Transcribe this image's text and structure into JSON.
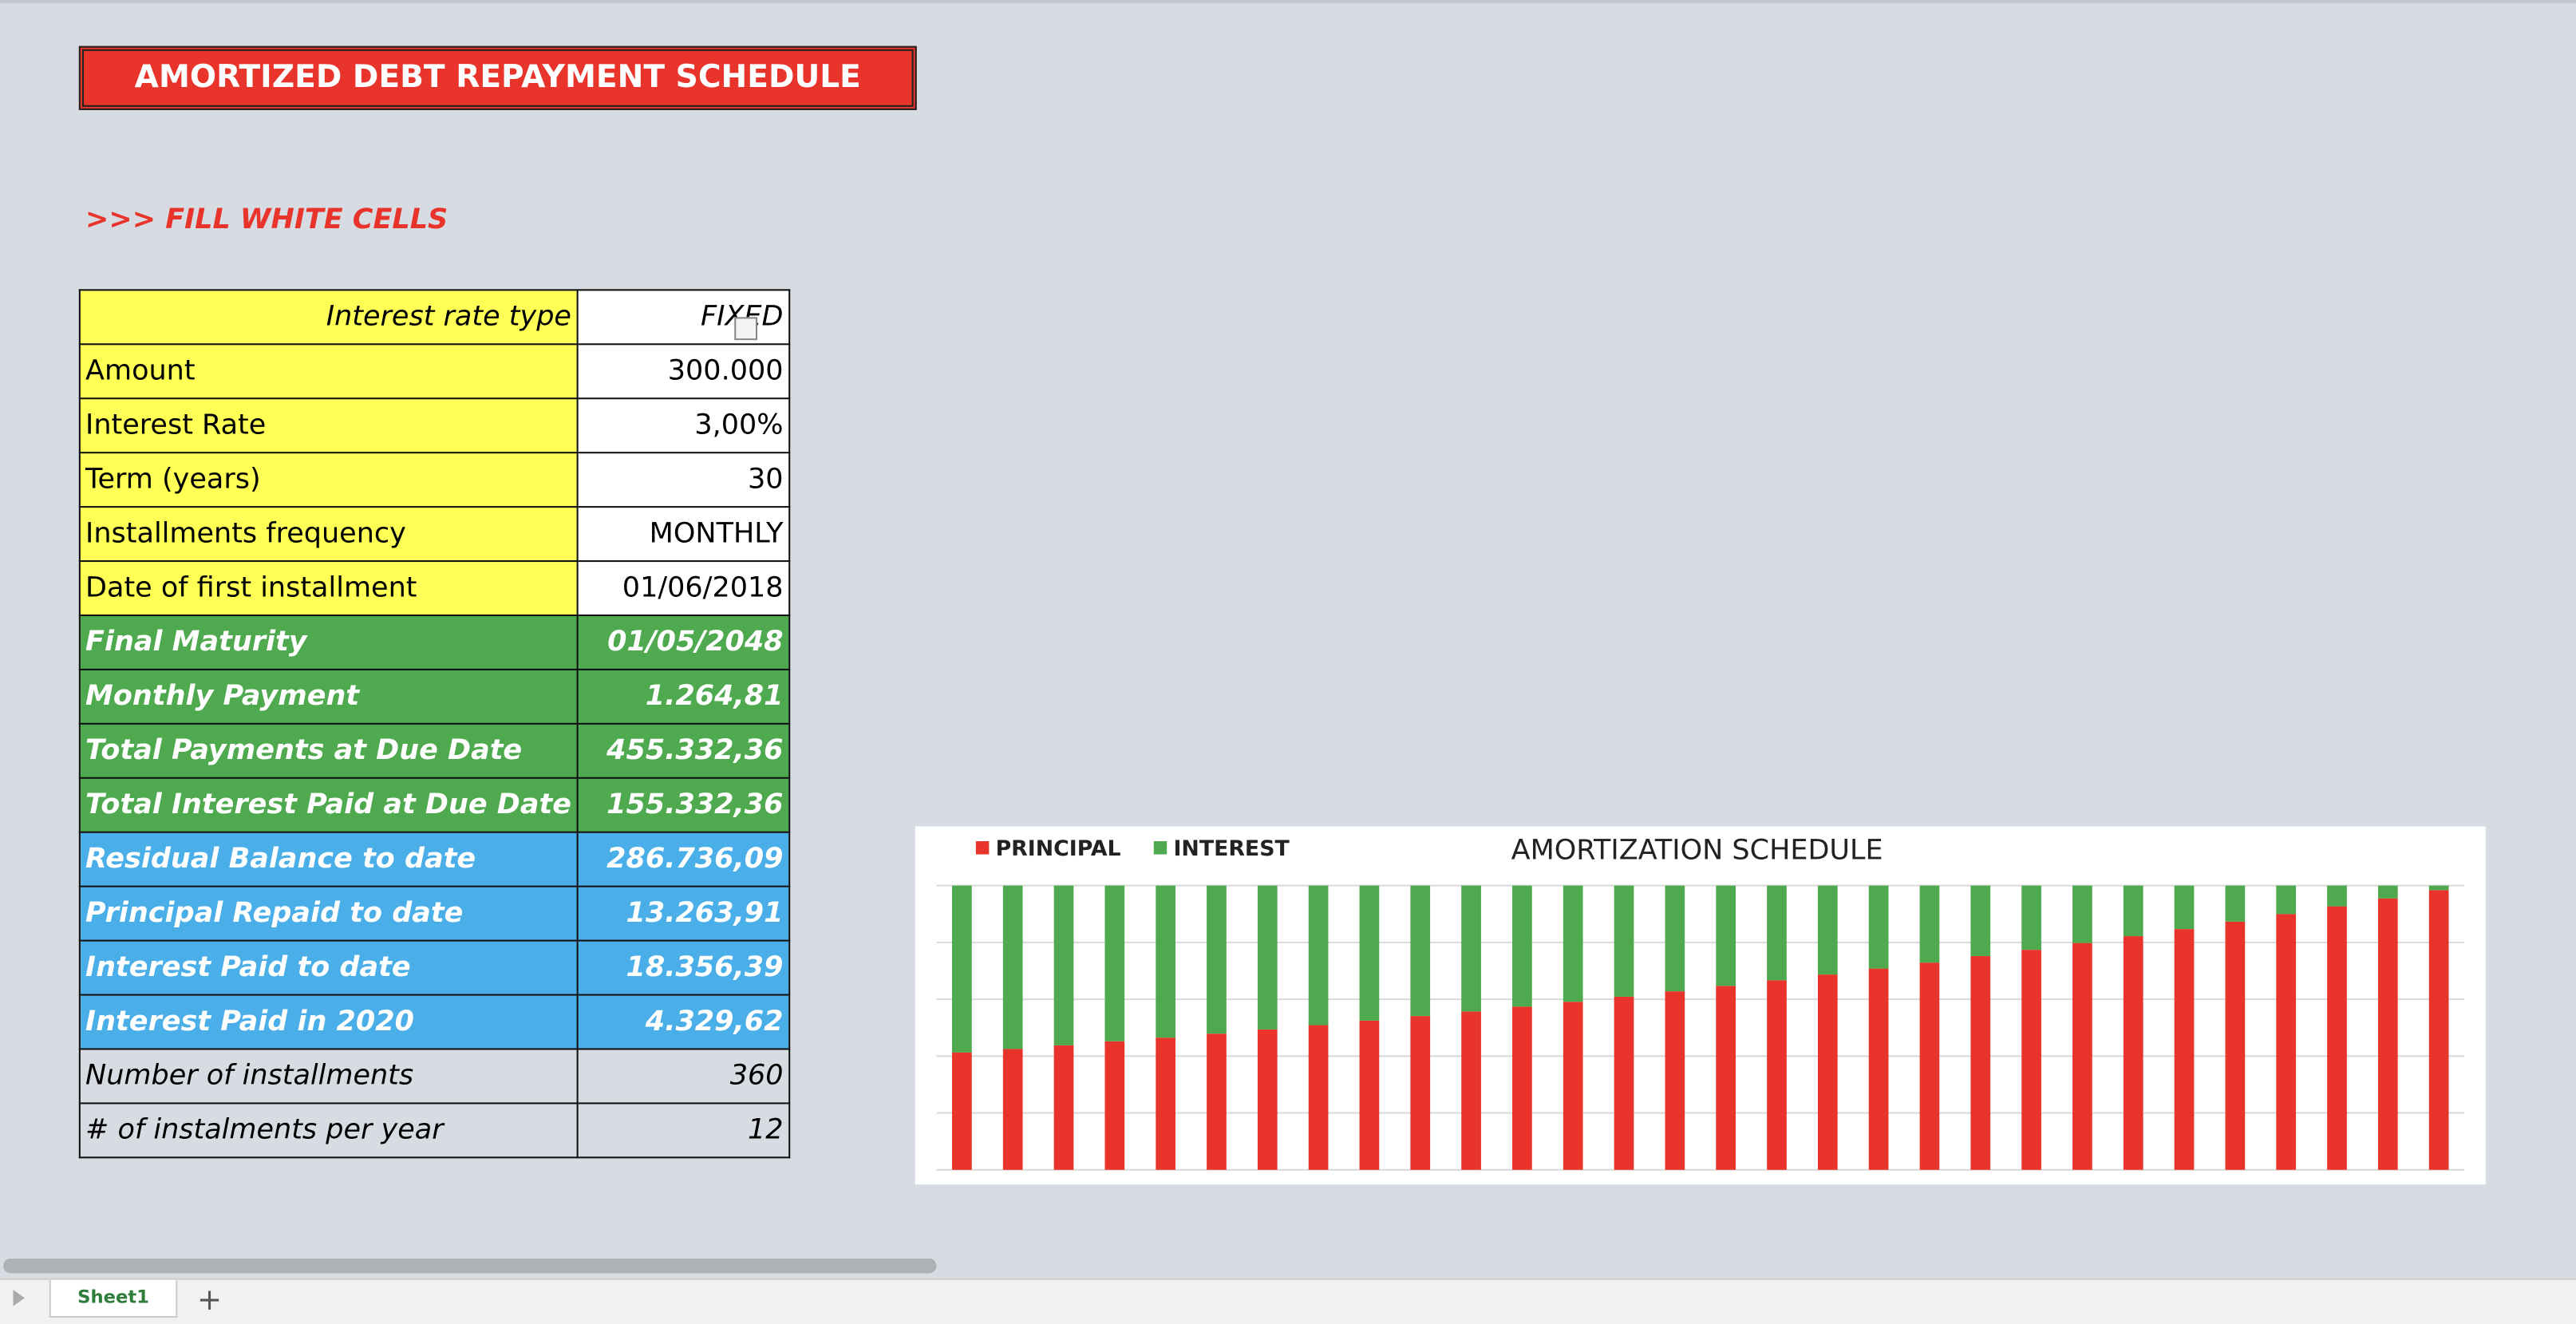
{
  "header": {
    "title": "AMORTIZED DEBT REPAYMENT SCHEDULE",
    "instruction": ">>> FILL WHITE CELLS"
  },
  "table": {
    "rows": [
      [
        "Interest rate type",
        "FIXED"
      ],
      [
        "Amount",
        "300.000"
      ],
      [
        "Interest Rate",
        "3,00%"
      ],
      [
        "Term (years)",
        "30"
      ],
      [
        "Installments frequency",
        "MONTHLY"
      ],
      [
        "Date of first installment",
        "01/06/2018"
      ],
      [
        "Final Maturity",
        "01/05/2048"
      ],
      [
        "Monthly Payment",
        "1.264,81"
      ],
      [
        "Total Payments at Due Date",
        "455.332,36"
      ],
      [
        "Total Interest Paid at Due Date",
        "155.332,36"
      ],
      [
        "Residual Balance to date",
        "286.736,09"
      ],
      [
        "Principal Repaid to date",
        "13.263,91"
      ],
      [
        "Interest Paid to date",
        "18.356,39"
      ],
      [
        "Interest Paid in 2020",
        "4.329,62"
      ],
      [
        "Number of installments",
        "360"
      ],
      [
        "# of instalments per year",
        "12"
      ]
    ]
  },
  "chart_data": {
    "type": "stacked_bar",
    "title": "AMORTIZATION SCHEDULE",
    "categories": [
      null,
      null,
      null,
      null,
      null,
      null,
      null,
      null,
      null,
      null,
      null,
      null,
      null,
      null,
      null,
      null,
      null,
      null,
      null,
      null,
      null,
      null,
      null,
      null,
      null,
      null,
      null,
      null,
      null,
      null
    ],
    "series": [
      {
        "name": "PRINCIPAL",
        "color": "#e8342a",
        "values": [
          41.3,
          42.5,
          43.8,
          45.2,
          46.5,
          47.9,
          49.4,
          50.9,
          52.5,
          54.1,
          55.7,
          57.4,
          59.1,
          60.9,
          62.8,
          64.7,
          66.7,
          68.7,
          70.8,
          72.9,
          75.2,
          77.4,
          79.8,
          82.2,
          84.7,
          87.3,
          90.0,
          92.7,
          95.5,
          98.4
        ]
      },
      {
        "name": "INTEREST",
        "color": "#4ea94f",
        "values": [
          58.7,
          57.5,
          56.2,
          54.8,
          53.5,
          52.1,
          50.6,
          49.1,
          47.5,
          45.9,
          44.3,
          42.6,
          40.9,
          39.1,
          37.2,
          35.3,
          33.3,
          31.3,
          29.2,
          27.1,
          24.8,
          22.6,
          20.2,
          17.8,
          15.3,
          12.7,
          10.0,
          7.3,
          4.5,
          1.6
        ]
      }
    ],
    "ylim": [
      0,
      100
    ],
    "yticks": [
      0,
      20,
      40,
      60,
      80,
      100
    ],
    "grid": true,
    "legend": "top-left"
  },
  "sheet_tab": "Sheet1"
}
